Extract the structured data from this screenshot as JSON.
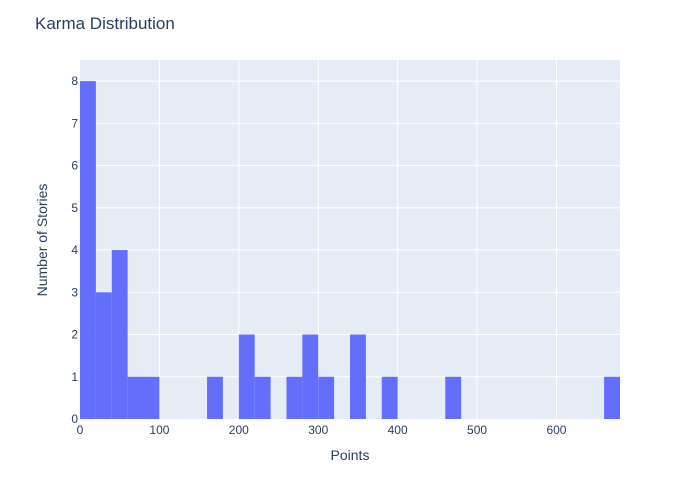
{
  "chart_data": {
    "type": "bar",
    "title": "Karma Distribution",
    "xlabel": "Points",
    "ylabel": "Number of Stories",
    "bin_width": 20,
    "bins_start": [
      0,
      20,
      40,
      60,
      80,
      100,
      120,
      140,
      160,
      180,
      200,
      220,
      240,
      260,
      280,
      300,
      320,
      340,
      360,
      380,
      400,
      420,
      440,
      460,
      480,
      500,
      520,
      540,
      560,
      580,
      600,
      620,
      640,
      660
    ],
    "values": [
      8,
      3,
      4,
      1,
      1,
      0,
      0,
      0,
      1,
      0,
      2,
      1,
      0,
      1,
      2,
      1,
      0,
      2,
      0,
      1,
      0,
      0,
      0,
      1,
      0,
      0,
      0,
      0,
      0,
      0,
      0,
      0,
      0,
      1
    ],
    "xlim": [
      0,
      680
    ],
    "ylim": [
      0,
      8.5
    ],
    "x_ticks": [
      0,
      100,
      200,
      300,
      400,
      500,
      600
    ],
    "x_tick_labels": [
      "0",
      "100",
      "200",
      "300",
      "400",
      "500",
      "600"
    ],
    "y_ticks": [
      0,
      1,
      2,
      3,
      4,
      5,
      6,
      7,
      8
    ],
    "y_tick_labels": [
      "0",
      "1",
      "2",
      "3",
      "4",
      "5",
      "6",
      "7",
      "8"
    ],
    "grid": true,
    "colors": {
      "bar": "#636efa",
      "plot_bg": "#e5ecf6",
      "grid": "#ffffff",
      "text": "#2a3f5f"
    }
  }
}
